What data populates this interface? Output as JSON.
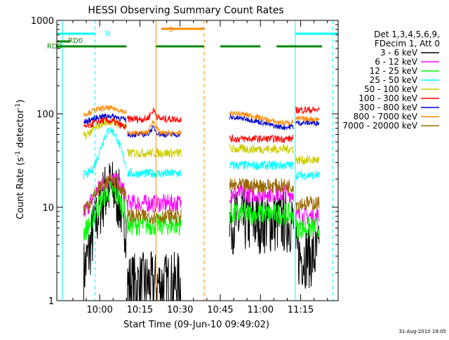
{
  "chart_data": {
    "type": "line",
    "title": "HESSI Observing Summary Count Rates",
    "xlabel": "Start Time (09-Jun-10 09:49:02)",
    "ylabel_main": "Count Rate (s",
    "ylabel_sup1": "-1",
    "ylabel_mid": " detector",
    "ylabel_sup2": "-1",
    "ylabel_end": ")",
    "yscale": "log",
    "ylim": [
      1,
      1000
    ],
    "xlim_min": [
      -5,
      100
    ],
    "x_ticks": [
      {
        "t": 11,
        "label": "10:00"
      },
      {
        "t": 26,
        "label": "10:15"
      },
      {
        "t": 41,
        "label": "10:30"
      },
      {
        "t": 56,
        "label": "10:45"
      },
      {
        "t": 71,
        "label": "11:00"
      },
      {
        "t": 86,
        "label": "11:15"
      }
    ],
    "y_ticks": [
      {
        "v": 1,
        "label": "1"
      },
      {
        "v": 10,
        "label": "10"
      },
      {
        "v": 100,
        "label": "100"
      },
      {
        "v": 1000,
        "label": "1000"
      }
    ],
    "legend_header": [
      "Det 1,3,4,5,6,9,",
      "FDecim 1, Att 0"
    ],
    "series": [
      {
        "name": "3 - 6 keV",
        "color": "#000000"
      },
      {
        "name": "6 - 12 keV",
        "color": "#ff00ff"
      },
      {
        "name": "12 - 25 keV",
        "color": "#00ff00"
      },
      {
        "name": "25 - 50 keV",
        "color": "#00ffff"
      },
      {
        "name": "50 - 100 keV",
        "color": "#cccc00"
      },
      {
        "name": "100 - 300 keV",
        "color": "#ff0000"
      },
      {
        "name": "300 - 800 keV",
        "color": "#0000cc"
      },
      {
        "name": "800 - 7000 keV",
        "color": "#ff8800"
      },
      {
        "name": "7000 - 20000 keV",
        "color": "#996600"
      }
    ],
    "flags": [
      {
        "name": "N",
        "color": "#00ffff",
        "segments": [
          [
            -5,
            9.3
          ],
          [
            84,
            100
          ]
        ]
      },
      {
        "name": "S",
        "color": "#ff8800",
        "segments": [
          [
            34,
            50
          ]
        ]
      },
      {
        "name": "RD0",
        "color": "#008800",
        "segments": [
          [
            -5,
            0
          ]
        ]
      },
      {
        "name": "RDB",
        "color": "#008800",
        "segments": [
          [
            -5,
            21
          ],
          [
            32,
            50
          ],
          [
            56,
            71
          ],
          [
            77,
            94
          ]
        ]
      }
    ],
    "vlines": [
      {
        "t": -3,
        "color": "#00ffff",
        "dash": false
      },
      {
        "t": 9.3,
        "color": "#00ffff",
        "dash": true
      },
      {
        "t": 32,
        "color": "#ff8800",
        "dash": false
      },
      {
        "t": 50,
        "color": "#ff8800",
        "dash": true
      },
      {
        "t": 84,
        "color": "#00ffff",
        "dash": false
      },
      {
        "t": 98,
        "color": "#00ffff",
        "dash": true
      }
    ],
    "grid": false,
    "legend_position": "right"
  },
  "footer": {
    "timestamp": "31-Aug-2010 19:05"
  }
}
